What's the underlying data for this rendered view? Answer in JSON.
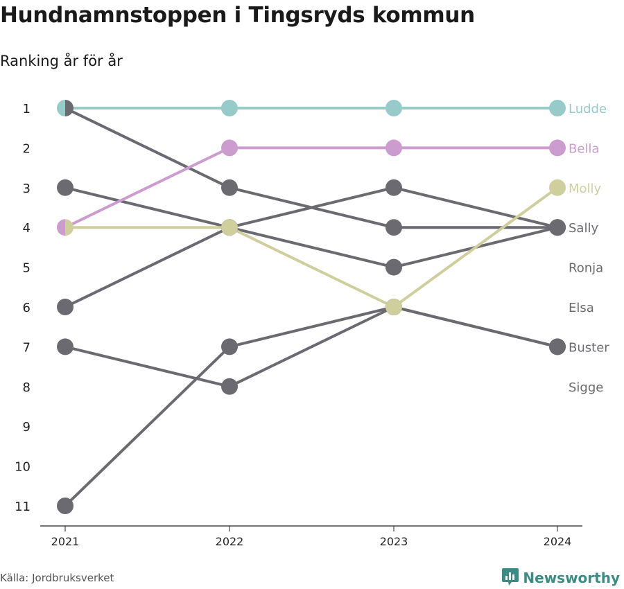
{
  "header": {
    "title": "Hundnamnstoppen i Tingsryds kommun",
    "subtitle": "Ranking år för år"
  },
  "footer": {
    "source": "Källa: Jordbruksverket",
    "brand": "Newsworthy",
    "brand_icon": "bar-chart-logo-icon"
  },
  "colors": {
    "Ludde": "#96cbc9",
    "Bella": "#cd9ccf",
    "Molly": "#cfcf9d",
    "default": "#6b6a70",
    "brand": "#3a8d84"
  },
  "chart_data": {
    "type": "line",
    "x": [
      "2021",
      "2022",
      "2023",
      "2024"
    ],
    "y_ticks": [
      "1",
      "2",
      "3",
      "4",
      "5",
      "6",
      "7",
      "8",
      "9",
      "10",
      "11"
    ],
    "ylim": [
      1,
      11
    ],
    "y_inverted": true,
    "series": [
      {
        "name": "Sally",
        "values": [
          3,
          4,
          5,
          4
        ]
      },
      {
        "name": "Ronja",
        "values": [
          6,
          4,
          3,
          4
        ]
      },
      {
        "name": "Elsa",
        "values": [
          7,
          8,
          6,
          7
        ]
      },
      {
        "name": "Sigge",
        "values": [
          11,
          7,
          6,
          7
        ]
      },
      {
        "name": "Buster",
        "values": [
          1,
          3,
          4,
          4
        ]
      },
      {
        "name": "Molly",
        "values": [
          4,
          4,
          6,
          3
        ]
      },
      {
        "name": "Bella",
        "values": [
          4,
          2,
          2,
          2
        ]
      },
      {
        "name": "Ludde",
        "values": [
          1,
          1,
          1,
          1
        ]
      }
    ],
    "end_labels": [
      {
        "name": "Ludde",
        "rank": 1
      },
      {
        "name": "Bella",
        "rank": 2
      },
      {
        "name": "Molly",
        "rank": 3
      },
      {
        "name": "Sally",
        "rank": 4
      },
      {
        "name": "Ronja",
        "rank": 5
      },
      {
        "name": "Elsa",
        "rank": 6
      },
      {
        "name": "Buster",
        "rank": 7
      },
      {
        "name": "Sigge",
        "rank": 8
      }
    ],
    "split_markers_2021": [
      {
        "rank": 1,
        "left": "Ludde",
        "right": "Buster"
      },
      {
        "rank": 4,
        "left": "Bella",
        "right": "Molly"
      }
    ]
  }
}
